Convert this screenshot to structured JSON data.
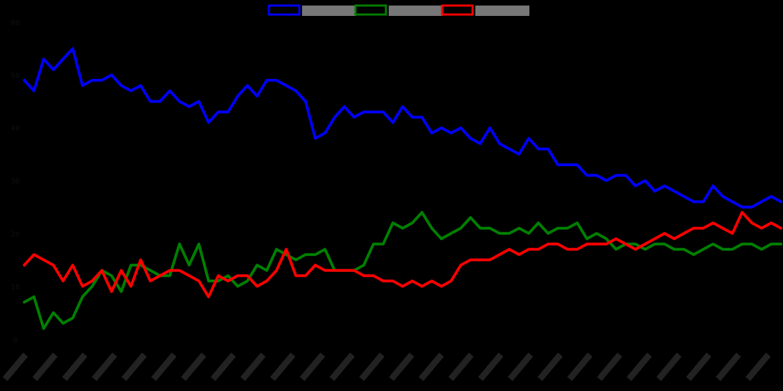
{
  "chart_data": {
    "type": "line",
    "title": "",
    "xlabel": "",
    "ylabel": "",
    "ylim": [
      0,
      60
    ],
    "yticks": [
      0,
      10,
      20,
      30,
      40,
      50,
      60
    ],
    "grid": false,
    "legend_position": "top-center",
    "x_axis_note": "x axis spans 26 rotated date tick labels (labels are illegible, rendered dark on black)",
    "series": [
      {
        "color": "#0000ff",
        "values": [
          49,
          47,
          53,
          51,
          53,
          55,
          48,
          49,
          49,
          50,
          48,
          47,
          48,
          45,
          45,
          47,
          45,
          44,
          45,
          41,
          43,
          43,
          46,
          48,
          46,
          49,
          49,
          48,
          47,
          45,
          38,
          39,
          42,
          44,
          42,
          43,
          43,
          43,
          41,
          44,
          42,
          42,
          39,
          40,
          39,
          40,
          38,
          37,
          40,
          37,
          36,
          35,
          38,
          36,
          36,
          33,
          33,
          33,
          31,
          31,
          30,
          31,
          31,
          29,
          30,
          28,
          29,
          28,
          27,
          26,
          26,
          29,
          27,
          26,
          25,
          25,
          26,
          27,
          26
        ]
      },
      {
        "color": "#008000",
        "values": [
          7,
          8,
          2,
          5,
          3,
          4,
          8,
          10,
          13,
          12,
          9,
          14,
          14,
          13,
          12,
          12,
          18,
          14,
          18,
          11,
          11,
          12,
          10,
          11,
          14,
          13,
          17,
          16,
          15,
          16,
          16,
          17,
          13,
          13,
          13,
          14,
          18,
          18,
          22,
          21,
          22,
          24,
          21,
          19,
          20,
          21,
          23,
          21,
          21,
          20,
          20,
          21,
          20,
          22,
          20,
          21,
          21,
          22,
          19,
          20,
          19,
          17,
          18,
          18,
          17,
          18,
          18,
          17,
          17,
          16,
          17,
          18,
          17,
          17,
          18,
          18,
          17,
          18,
          18
        ]
      },
      {
        "color": "#ff0000",
        "values": [
          14,
          16,
          15,
          14,
          11,
          14,
          10,
          11,
          13,
          9,
          13,
          10,
          15,
          11,
          12,
          13,
          13,
          12,
          11,
          8,
          12,
          11,
          12,
          12,
          10,
          11,
          13,
          17,
          12,
          12,
          14,
          13,
          13,
          13,
          13,
          12,
          12,
          11,
          11,
          10,
          11,
          10,
          11,
          10,
          11,
          14,
          15,
          15,
          15,
          16,
          17,
          16,
          17,
          17,
          18,
          18,
          17,
          17,
          18,
          18,
          18,
          19,
          18,
          17,
          18,
          19,
          20,
          19,
          20,
          21,
          21,
          22,
          21,
          20,
          24,
          22,
          21,
          22,
          21
        ]
      }
    ],
    "x_tick_count": 26,
    "legend": {
      "entries": [
        {
          "color": "#0000ff"
        },
        {
          "color": "#008000"
        },
        {
          "color": "#ff0000"
        }
      ]
    }
  }
}
